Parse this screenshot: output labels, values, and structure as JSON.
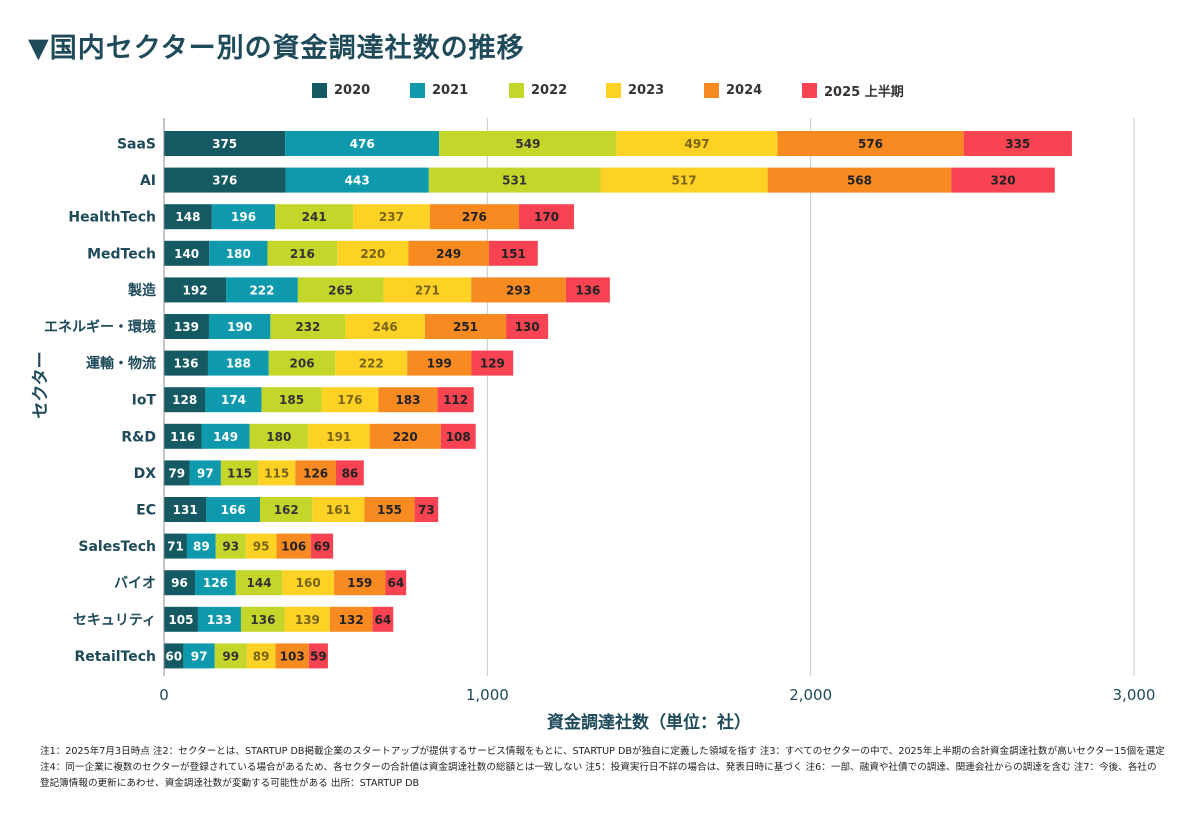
{
  "title": "▼国内セクター別の資金調達社数の推移",
  "footnote": "注1：2025年7月3日時点 注2：セクターとは、STARTUP DB掲載企業のスタートアップが提供するサービス情報をもとに、STARTUP DBが独自に定義した領域を指す 注3：すべてのセクターの中で、2025年上半期の合計資金調達社数が高いセクター15個を選定 注4：同一企業に複数のセクターが登録されている場合があるため、各セクターの合計値は資金調達社数の総額とは一致しない 注5：投資実行日不詳の場合は、発表日時に基づく 注6：一部、融資や社債での調達、関連会社からの調達を含む 注7：今後、各社の登記簿情報の更新にあわせ、資金調達社数が変動する可能性がある 出所：STARTUP DB",
  "chart_data": {
    "type": "bar",
    "orientation": "horizontal",
    "stacked": true,
    "xlabel": "資金調達社数（単位：社）",
    "ylabel": "セクター",
    "xlim": [
      0,
      3000
    ],
    "xticks": [
      0,
      1000,
      2000,
      3000
    ],
    "xtick_labels": [
      "0",
      "1,000",
      "2,000",
      "3,000"
    ],
    "grid": "vertical",
    "legend_position": "top",
    "categories": [
      "SaaS",
      "AI",
      "HealthTech",
      "MedTech",
      "製造",
      "エネルギー・環境",
      "運輸・物流",
      "IoT",
      "R&D",
      "DX",
      "EC",
      "SalesTech",
      "バイオ",
      "セキュリティ",
      "RetailTech"
    ],
    "series": [
      {
        "name": "2020",
        "color": "#155a63",
        "label_color": "#ffffff",
        "values": [
          375,
          376,
          148,
          140,
          192,
          139,
          136,
          128,
          116,
          79,
          131,
          71,
          96,
          105,
          60
        ]
      },
      {
        "name": "2021",
        "color": "#0e99ad",
        "label_color": "#ffffff",
        "values": [
          476,
          443,
          196,
          180,
          222,
          190,
          188,
          174,
          149,
          97,
          166,
          89,
          126,
          133,
          97
        ]
      },
      {
        "name": "2022",
        "color": "#c5d62b",
        "label_color": "#333333",
        "values": [
          549,
          531,
          241,
          216,
          265,
          232,
          206,
          185,
          180,
          115,
          162,
          93,
          144,
          136,
          99
        ]
      },
      {
        "name": "2023",
        "color": "#fdd225",
        "label_color": "#7a6418",
        "values": [
          497,
          517,
          237,
          220,
          271,
          246,
          222,
          176,
          191,
          115,
          161,
          95,
          160,
          139,
          89
        ]
      },
      {
        "name": "2024",
        "color": "#f88a22",
        "label_color": "#222222",
        "values": [
          576,
          568,
          276,
          249,
          293,
          251,
          199,
          183,
          220,
          126,
          155,
          106,
          159,
          132,
          103
        ]
      },
      {
        "name": "2025 上半期",
        "color": "#f84452",
        "label_color": "#222222",
        "values": [
          335,
          320,
          170,
          151,
          136,
          130,
          129,
          112,
          108,
          86,
          73,
          69,
          64,
          64,
          59
        ]
      }
    ]
  }
}
